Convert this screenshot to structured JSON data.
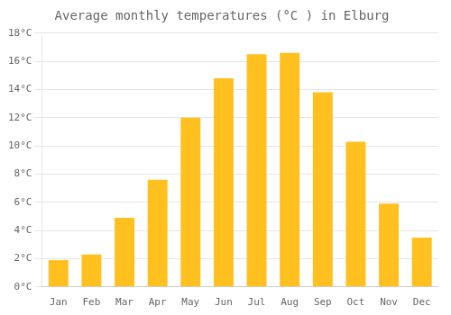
{
  "chart_data": {
    "type": "bar",
    "title": "Average monthly temperatures (°C ) in Elburg",
    "categories": [
      "Jan",
      "Feb",
      "Mar",
      "Apr",
      "May",
      "Jun",
      "Jul",
      "Aug",
      "Sep",
      "Oct",
      "Nov",
      "Dec"
    ],
    "values": [
      1.9,
      2.3,
      4.9,
      7.6,
      12.0,
      14.8,
      16.5,
      16.6,
      13.8,
      10.3,
      5.9,
      3.5
    ],
    "color": "#FFC020",
    "ylim": [
      0,
      18
    ],
    "yticks": [
      {
        "value": 0,
        "label": "0°C"
      },
      {
        "value": 2,
        "label": "2°C"
      },
      {
        "value": 4,
        "label": "4°C"
      },
      {
        "value": 6,
        "label": "6°C"
      },
      {
        "value": 8,
        "label": "8°C"
      },
      {
        "value": 10,
        "label": "10°C"
      },
      {
        "value": 12,
        "label": "12°C"
      },
      {
        "value": 14,
        "label": "14°C"
      },
      {
        "value": 16,
        "label": "16°C"
      },
      {
        "value": 18,
        "label": "18°C"
      }
    ],
    "grid": true
  }
}
